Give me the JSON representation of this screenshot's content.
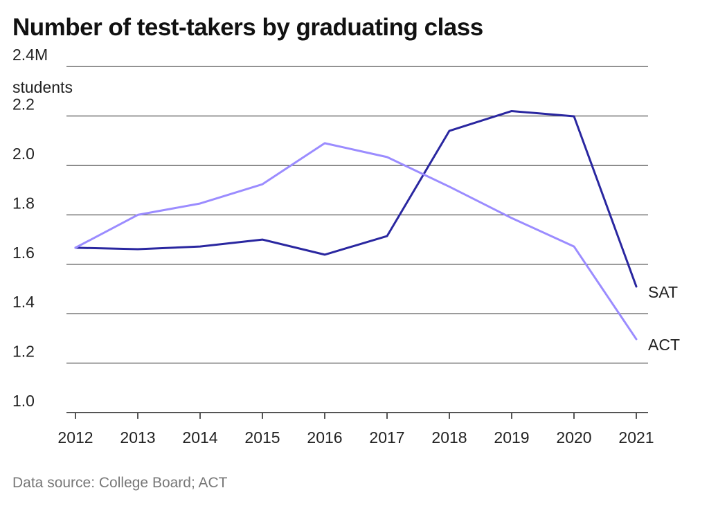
{
  "chart_data": {
    "type": "line",
    "title": "Number of test-takers by graduating class",
    "ylabel": "students",
    "yunit": "M",
    "x": [
      2012,
      2013,
      2014,
      2015,
      2016,
      2017,
      2018,
      2019,
      2020,
      2021
    ],
    "ylim": [
      1.0,
      2.4
    ],
    "yticks": [
      "1.0",
      "1.2",
      "1.4",
      "1.6",
      "1.8",
      "2.0",
      "2.2",
      "2.4M"
    ],
    "grid": true,
    "series": [
      {
        "name": "SAT",
        "color": "#2a27a0",
        "values": [
          1.667,
          1.661,
          1.672,
          1.7,
          1.639,
          1.714,
          2.14,
          2.22,
          2.199,
          1.51
        ]
      },
      {
        "name": "ACT",
        "color": "#9b8cff",
        "values": [
          1.667,
          1.8,
          1.846,
          1.924,
          2.09,
          2.034,
          1.914,
          1.787,
          1.672,
          1.297
        ]
      }
    ]
  },
  "source": "Data source: College Board; ACT"
}
